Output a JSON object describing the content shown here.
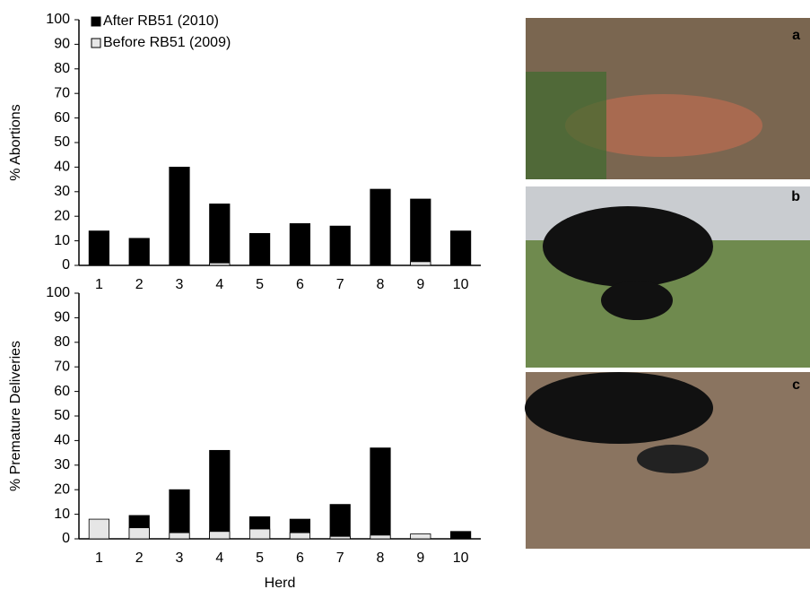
{
  "chart_data": [
    {
      "type": "bar",
      "ylabel": "% Abortions",
      "categories": [
        "1",
        "2",
        "3",
        "4",
        "5",
        "6",
        "7",
        "8",
        "9",
        "10"
      ],
      "series": [
        {
          "name": "After RB51 (2010)",
          "color": "#000000",
          "values": [
            14,
            11,
            40,
            25,
            13,
            17,
            16,
            31,
            27,
            14
          ]
        },
        {
          "name": "Before RB51 (2009)",
          "color": "#e6e6e6",
          "values": [
            0,
            0,
            0,
            1,
            0,
            0,
            0,
            0,
            1.5,
            0
          ]
        }
      ],
      "ylim": [
        0,
        100
      ],
      "yticks": [
        0,
        10,
        20,
        30,
        40,
        50,
        60,
        70,
        80,
        90,
        100
      ],
      "legend": "upper left"
    },
    {
      "type": "bar",
      "ylabel": "% Premature Deliveries",
      "xlabel": "Herd",
      "categories": [
        "1",
        "2",
        "3",
        "4",
        "5",
        "6",
        "7",
        "8",
        "9",
        "10"
      ],
      "series": [
        {
          "color": "#000000",
          "values": [
            0,
            9.5,
            20,
            36,
            9,
            8,
            14,
            37,
            0,
            3
          ]
        },
        {
          "color": "#e6e6e6",
          "values": [
            8,
            4.5,
            2.5,
            3,
            4,
            2.5,
            1,
            1.5,
            2,
            0
          ]
        }
      ],
      "ylim": [
        0,
        100
      ],
      "yticks": [
        0,
        10,
        20,
        30,
        40,
        50,
        60,
        70,
        80,
        90,
        100
      ]
    }
  ],
  "photo_labels": [
    "a",
    "b",
    "c"
  ]
}
